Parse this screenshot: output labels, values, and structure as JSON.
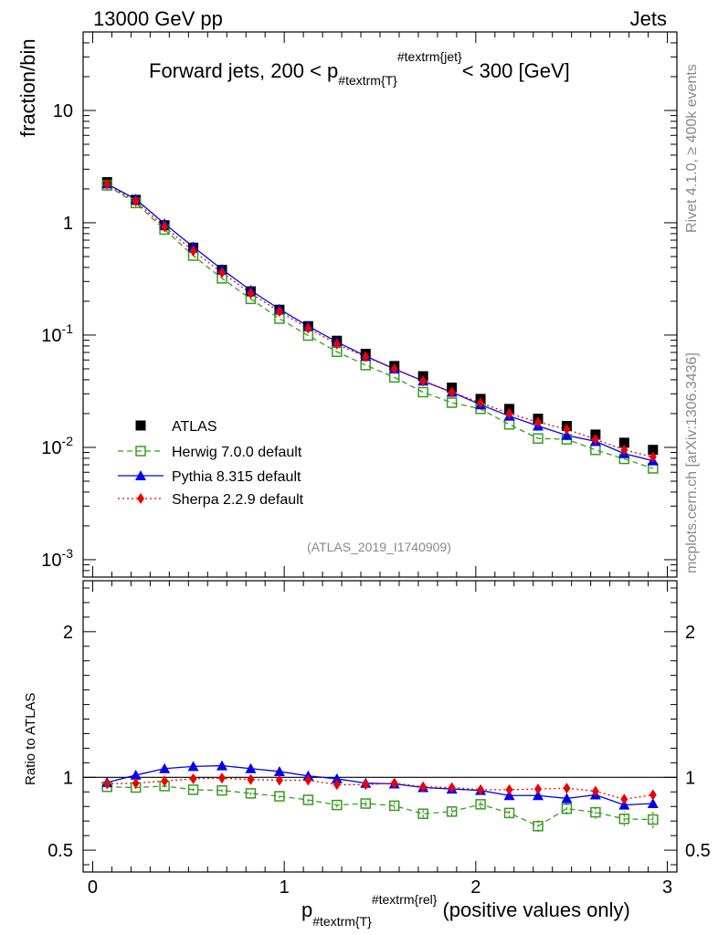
{
  "header": {
    "left": "13000 GeV pp",
    "right": "Jets"
  },
  "side": {
    "rivet": "Rivet 4.1.0, ≥ 400k events",
    "mcplots": "mcplots.cern.ch [arXiv:1306.3436]"
  },
  "analysis_id": "(ATLAS_2019_I1740909)",
  "chart_data": [
    {
      "type": "line",
      "title": "Forward jets, 200 < p",
      "title_sub": "#textrm{T}",
      "title_sup": "#textrm{jet}",
      "title_tail": "< 300 [GeV]",
      "ylabel": "fraction/bin",
      "yscale": "log",
      "ylim": [
        0.0007,
        50
      ],
      "xlim": [
        -0.05,
        3.05
      ],
      "ytick_labels": {
        "10": "10",
        "1": "1",
        "0.1": "10^-1",
        "0.01": "10^-2",
        "0.001": "10^-3"
      },
      "x": [
        0.075,
        0.225,
        0.375,
        0.525,
        0.675,
        0.825,
        0.975,
        1.125,
        1.275,
        1.425,
        1.575,
        1.725,
        1.875,
        2.025,
        2.175,
        2.325,
        2.475,
        2.625,
        2.775,
        2.925
      ],
      "series": [
        {
          "name": "ATLAS",
          "color": "#000000",
          "marker": "square",
          "line": "none",
          "values": [
            2.3,
            1.6,
            0.95,
            0.6,
            0.38,
            0.245,
            0.168,
            0.12,
            0.089,
            0.068,
            0.053,
            0.043,
            0.034,
            0.027,
            0.022,
            0.018,
            0.0155,
            0.013,
            0.011,
            0.0095
          ]
        },
        {
          "name": "Herwig 7.0.0 default",
          "color": "#3a9a1e",
          "marker": "open-square",
          "line": "dashed",
          "values": [
            2.15,
            1.5,
            0.87,
            0.51,
            0.32,
            0.21,
            0.14,
            0.099,
            0.071,
            0.054,
            0.042,
            0.031,
            0.025,
            0.022,
            0.016,
            0.012,
            0.0118,
            0.0095,
            0.0079,
            0.0065
          ]
        },
        {
          "name": "Pythia 8.315 default",
          "color": "#0000ee",
          "marker": "triangle",
          "line": "solid",
          "values": [
            2.22,
            1.62,
            0.98,
            0.61,
            0.385,
            0.25,
            0.17,
            0.12,
            0.087,
            0.065,
            0.05,
            0.039,
            0.031,
            0.024,
            0.019,
            0.0155,
            0.0128,
            0.0113,
            0.0088,
            0.0076
          ]
        },
        {
          "name": "Sherpa 2.2.9 default",
          "color": "#ee0000",
          "marker": "diamond",
          "line": "dotted",
          "values": [
            2.2,
            1.55,
            0.92,
            0.56,
            0.36,
            0.235,
            0.162,
            0.115,
            0.083,
            0.064,
            0.05,
            0.039,
            0.031,
            0.025,
            0.02,
            0.0168,
            0.0145,
            0.0118,
            0.0095,
            0.0082
          ]
        }
      ]
    },
    {
      "type": "line",
      "ylabel": "Ratio to ATLAS",
      "xlabel": "p",
      "xlabel_sub": "#textrm{T}",
      "xlabel_sup": "#textrm{rel}",
      "xlabel_tail": "(positive values only)",
      "yscale": "linear",
      "ylim": [
        0.35,
        2.35
      ],
      "xlim": [
        -0.05,
        3.05
      ],
      "x_ticks": [
        0,
        1,
        2,
        3
      ],
      "y_ticks": [
        0.5,
        1,
        2
      ],
      "reference": 1.0,
      "x": [
        0.075,
        0.225,
        0.375,
        0.525,
        0.675,
        0.825,
        0.975,
        1.125,
        1.275,
        1.425,
        1.575,
        1.725,
        1.875,
        2.025,
        2.175,
        2.325,
        2.475,
        2.625,
        2.775,
        2.925
      ],
      "series": [
        {
          "name": "Herwig 7.0.0 default",
          "color": "#3a9a1e",
          "marker": "open-square",
          "line": "dashed",
          "values": [
            0.935,
            0.93,
            0.94,
            0.915,
            0.91,
            0.89,
            0.87,
            0.845,
            0.81,
            0.82,
            0.805,
            0.75,
            0.765,
            0.815,
            0.755,
            0.665,
            0.785,
            0.76,
            0.715,
            0.71
          ],
          "errors": [
            0.01,
            0.01,
            0.01,
            0.01,
            0.012,
            0.012,
            0.014,
            0.016,
            0.018,
            0.02,
            0.022,
            0.025,
            0.028,
            0.03,
            0.035,
            0.04,
            0.04,
            0.045,
            0.05,
            0.06
          ]
        },
        {
          "name": "Pythia 8.315 default",
          "color": "#0000ee",
          "marker": "triangle",
          "line": "solid",
          "values": [
            0.965,
            1.015,
            1.06,
            1.075,
            1.08,
            1.06,
            1.04,
            1.01,
            0.99,
            0.96,
            0.955,
            0.93,
            0.92,
            0.91,
            0.875,
            0.875,
            0.855,
            0.88,
            0.81,
            0.82
          ],
          "errors": [
            0.005,
            0.005,
            0.005,
            0.006,
            0.006,
            0.007,
            0.008,
            0.009,
            0.01,
            0.011,
            0.012,
            0.013,
            0.014,
            0.015,
            0.016,
            0.017,
            0.018,
            0.02,
            0.025,
            0.03
          ]
        },
        {
          "name": "Sherpa 2.2.9 default",
          "color": "#ee0000",
          "marker": "diamond",
          "line": "dotted",
          "values": [
            0.955,
            0.96,
            0.975,
            0.99,
            0.995,
            0.985,
            0.98,
            0.98,
            0.95,
            0.95,
            0.96,
            0.935,
            0.93,
            0.915,
            0.915,
            0.92,
            0.925,
            0.905,
            0.85,
            0.88
          ],
          "errors": [
            0.004,
            0.004,
            0.004,
            0.005,
            0.005,
            0.006,
            0.007,
            0.008,
            0.009,
            0.01,
            0.011,
            0.012,
            0.013,
            0.014,
            0.015,
            0.016,
            0.017,
            0.02,
            0.025,
            0.03
          ]
        }
      ]
    }
  ]
}
